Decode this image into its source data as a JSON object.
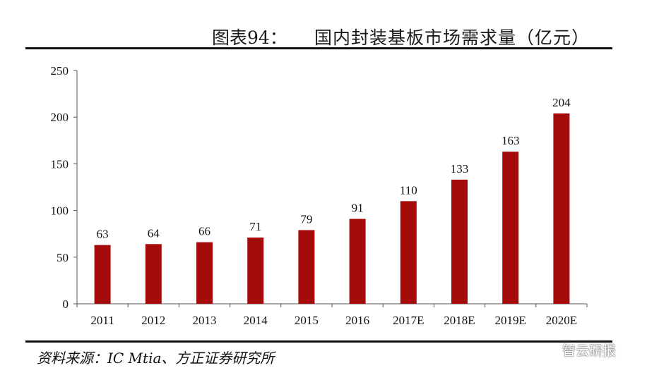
{
  "header": {
    "figure_label": "图表94：",
    "title": "国内封装基板市场需求量（亿元）"
  },
  "footer": {
    "source": "资料来源：IC Mtia、方正证券研究所",
    "watermark": "智云研报",
    "watermark_icon": "wechat-icon"
  },
  "colors": {
    "bar": "#A50B0B",
    "axis": "#555555",
    "rule": "#111111"
  },
  "chart_data": {
    "type": "bar",
    "categories": [
      "2011",
      "2012",
      "2013",
      "2014",
      "2015",
      "2016",
      "2017E",
      "2018E",
      "2019E",
      "2020E"
    ],
    "values": [
      63,
      64,
      66,
      71,
      79,
      91,
      110,
      133,
      163,
      204
    ],
    "data_labels": [
      "63",
      "64",
      "66",
      "71",
      "79",
      "91",
      "110",
      "133",
      "163",
      "204"
    ],
    "ylim": [
      0,
      250
    ],
    "yticks": [
      0,
      50,
      100,
      150,
      200,
      250
    ],
    "grid": false,
    "legend": "none",
    "xlabel": "",
    "ylabel": ""
  }
}
